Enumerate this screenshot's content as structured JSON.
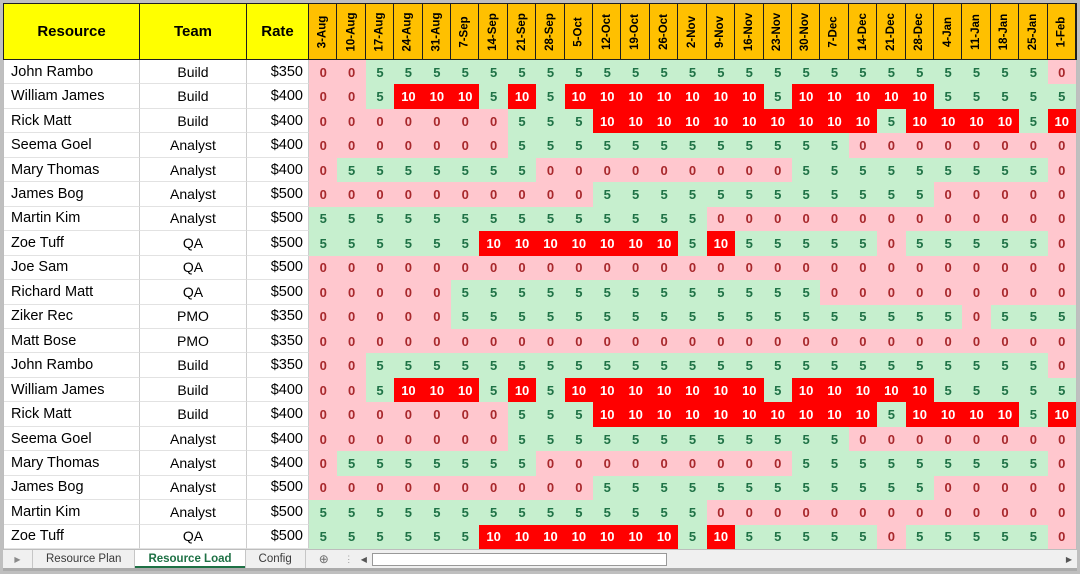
{
  "colors": {
    "header_fill": "#FFFF00",
    "date_fill": "#FFC000",
    "zero_fill": "#FFC7CE",
    "zero_text": "#A8282C",
    "five_fill": "#C6EFCE",
    "five_text": "#1F7246",
    "ten_fill": "#FF0000",
    "ten_text": "#FFFFFF",
    "active_tab": "#1E7145"
  },
  "table": {
    "column_headers": {
      "resource": "Resource",
      "team": "Team",
      "rate": "Rate"
    },
    "dates": [
      "3-Aug",
      "10-Aug",
      "17-Aug",
      "24-Aug",
      "31-Aug",
      "7-Sep",
      "14-Sep",
      "21-Sep",
      "28-Sep",
      "5-Oct",
      "12-Oct",
      "19-Oct",
      "26-Oct",
      "2-Nov",
      "9-Nov",
      "16-Nov",
      "23-Nov",
      "30-Nov",
      "7-Dec",
      "14-Dec",
      "21-Dec",
      "28-Dec",
      "4-Jan",
      "11-Jan",
      "18-Jan",
      "25-Jan",
      "1-Feb"
    ],
    "rows": [
      {
        "name": "John Rambo",
        "team": "Build",
        "rate": "$350",
        "values": [
          0,
          0,
          5,
          5,
          5,
          5,
          5,
          5,
          5,
          5,
          5,
          5,
          5,
          5,
          5,
          5,
          5,
          5,
          5,
          5,
          5,
          5,
          5,
          5,
          5,
          5,
          0
        ]
      },
      {
        "name": "William James",
        "team": "Build",
        "rate": "$400",
        "values": [
          0,
          0,
          5,
          10,
          10,
          10,
          5,
          10,
          5,
          10,
          10,
          10,
          10,
          10,
          10,
          10,
          5,
          10,
          10,
          10,
          10,
          10,
          5,
          5,
          5,
          5,
          5
        ]
      },
      {
        "name": "Rick Matt",
        "team": "Build",
        "rate": "$400",
        "values": [
          0,
          0,
          0,
          0,
          0,
          0,
          0,
          5,
          5,
          5,
          10,
          10,
          10,
          10,
          10,
          10,
          10,
          10,
          10,
          10,
          5,
          10,
          10,
          10,
          10,
          5,
          10
        ]
      },
      {
        "name": "Seema Goel",
        "team": "Analyst",
        "rate": "$400",
        "values": [
          0,
          0,
          0,
          0,
          0,
          0,
          0,
          5,
          5,
          5,
          5,
          5,
          5,
          5,
          5,
          5,
          5,
          5,
          5,
          0,
          0,
          0,
          0,
          0,
          0,
          0,
          0
        ]
      },
      {
        "name": "Mary Thomas",
        "team": "Analyst",
        "rate": "$400",
        "values": [
          0,
          5,
          5,
          5,
          5,
          5,
          5,
          5,
          0,
          0,
          0,
          0,
          0,
          0,
          0,
          0,
          0,
          5,
          5,
          5,
          5,
          5,
          5,
          5,
          5,
          5,
          0
        ]
      },
      {
        "name": "James Bog",
        "team": "Analyst",
        "rate": "$500",
        "values": [
          0,
          0,
          0,
          0,
          0,
          0,
          0,
          0,
          0,
          0,
          5,
          5,
          5,
          5,
          5,
          5,
          5,
          5,
          5,
          5,
          5,
          5,
          0,
          0,
          0,
          0,
          0
        ]
      },
      {
        "name": "Martin Kim",
        "team": "Analyst",
        "rate": "$500",
        "values": [
          5,
          5,
          5,
          5,
          5,
          5,
          5,
          5,
          5,
          5,
          5,
          5,
          5,
          5,
          0,
          0,
          0,
          0,
          0,
          0,
          0,
          0,
          0,
          0,
          0,
          0,
          0
        ]
      },
      {
        "name": "Zoe Tuff",
        "team": "QA",
        "rate": "$500",
        "values": [
          5,
          5,
          5,
          5,
          5,
          5,
          10,
          10,
          10,
          10,
          10,
          10,
          10,
          5,
          10,
          5,
          5,
          5,
          5,
          5,
          0,
          5,
          5,
          5,
          5,
          5,
          0
        ]
      },
      {
        "name": "Joe Sam",
        "team": "QA",
        "rate": "$500",
        "values": [
          0,
          0,
          0,
          0,
          0,
          0,
          0,
          0,
          0,
          0,
          0,
          0,
          0,
          0,
          0,
          0,
          0,
          0,
          0,
          0,
          0,
          0,
          0,
          0,
          0,
          0,
          0
        ]
      },
      {
        "name": "Richard Matt",
        "team": "QA",
        "rate": "$500",
        "values": [
          0,
          0,
          0,
          0,
          0,
          5,
          5,
          5,
          5,
          5,
          5,
          5,
          5,
          5,
          5,
          5,
          5,
          5,
          0,
          0,
          0,
          0,
          0,
          0,
          0,
          0,
          0
        ]
      },
      {
        "name": "Ziker Rec",
        "team": "PMO",
        "rate": "$350",
        "values": [
          0,
          0,
          0,
          0,
          0,
          5,
          5,
          5,
          5,
          5,
          5,
          5,
          5,
          5,
          5,
          5,
          5,
          5,
          5,
          5,
          5,
          5,
          5,
          0,
          5,
          5,
          5
        ]
      },
      {
        "name": "Matt Bose",
        "team": "PMO",
        "rate": "$350",
        "values": [
          0,
          0,
          0,
          0,
          0,
          0,
          0,
          0,
          0,
          0,
          0,
          0,
          0,
          0,
          0,
          0,
          0,
          0,
          0,
          0,
          0,
          0,
          0,
          0,
          0,
          0,
          0
        ]
      },
      {
        "name": "John Rambo",
        "team": "Build",
        "rate": "$350",
        "values": [
          0,
          0,
          5,
          5,
          5,
          5,
          5,
          5,
          5,
          5,
          5,
          5,
          5,
          5,
          5,
          5,
          5,
          5,
          5,
          5,
          5,
          5,
          5,
          5,
          5,
          5,
          0
        ]
      },
      {
        "name": "William James",
        "team": "Build",
        "rate": "$400",
        "values": [
          0,
          0,
          5,
          10,
          10,
          10,
          5,
          10,
          5,
          10,
          10,
          10,
          10,
          10,
          10,
          10,
          5,
          10,
          10,
          10,
          10,
          10,
          5,
          5,
          5,
          5,
          5
        ]
      },
      {
        "name": "Rick Matt",
        "team": "Build",
        "rate": "$400",
        "values": [
          0,
          0,
          0,
          0,
          0,
          0,
          0,
          5,
          5,
          5,
          10,
          10,
          10,
          10,
          10,
          10,
          10,
          10,
          10,
          10,
          5,
          10,
          10,
          10,
          10,
          5,
          10
        ]
      },
      {
        "name": "Seema Goel",
        "team": "Analyst",
        "rate": "$400",
        "values": [
          0,
          0,
          0,
          0,
          0,
          0,
          0,
          5,
          5,
          5,
          5,
          5,
          5,
          5,
          5,
          5,
          5,
          5,
          5,
          0,
          0,
          0,
          0,
          0,
          0,
          0,
          0
        ]
      },
      {
        "name": "Mary Thomas",
        "team": "Analyst",
        "rate": "$400",
        "values": [
          0,
          5,
          5,
          5,
          5,
          5,
          5,
          5,
          0,
          0,
          0,
          0,
          0,
          0,
          0,
          0,
          0,
          5,
          5,
          5,
          5,
          5,
          5,
          5,
          5,
          5,
          0
        ]
      },
      {
        "name": "James Bog",
        "team": "Analyst",
        "rate": "$500",
        "values": [
          0,
          0,
          0,
          0,
          0,
          0,
          0,
          0,
          0,
          0,
          5,
          5,
          5,
          5,
          5,
          5,
          5,
          5,
          5,
          5,
          5,
          5,
          0,
          0,
          0,
          0,
          0
        ]
      },
      {
        "name": "Martin Kim",
        "team": "Analyst",
        "rate": "$500",
        "values": [
          5,
          5,
          5,
          5,
          5,
          5,
          5,
          5,
          5,
          5,
          5,
          5,
          5,
          5,
          0,
          0,
          0,
          0,
          0,
          0,
          0,
          0,
          0,
          0,
          0,
          0,
          0
        ]
      },
      {
        "name": "Zoe Tuff",
        "team": "QA",
        "rate": "$500",
        "values": [
          5,
          5,
          5,
          5,
          5,
          5,
          10,
          10,
          10,
          10,
          10,
          10,
          10,
          5,
          10,
          5,
          5,
          5,
          5,
          5,
          0,
          5,
          5,
          5,
          5,
          5,
          0
        ]
      }
    ]
  },
  "tabs": [
    {
      "label": "Resource Plan",
      "active": false
    },
    {
      "label": "Resource Load",
      "active": true
    },
    {
      "label": "Config",
      "active": false
    }
  ],
  "icons": {
    "sheet_nav": "▶",
    "add_sheet": "⊕",
    "grip": "⋮",
    "scroll_left": "◀",
    "scroll_right": "▶"
  }
}
